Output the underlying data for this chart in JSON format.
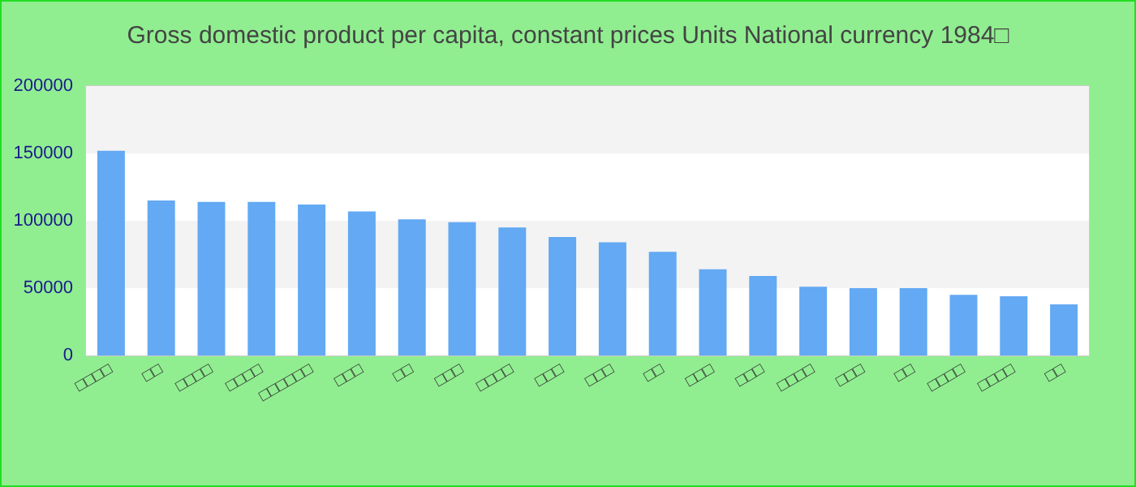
{
  "chart_data": {
    "type": "bar",
    "title": "Gross domestic product per capita, constant prices Units National currency 1984□",
    "categories": [
      "□□□□",
      "□□",
      "□□□□",
      "□□□□",
      "□□□□□□",
      "□□□",
      "□□",
      "□□□",
      "□□□□",
      "□□□",
      "□□□",
      "□□",
      "□□□",
      "□□□",
      "□□□□",
      "□□□",
      "□□",
      "□□□□",
      "□□□□",
      "□□"
    ],
    "values": [
      152000,
      115000,
      114000,
      114000,
      112000,
      107000,
      101000,
      99000,
      95000,
      88000,
      84000,
      77000,
      64000,
      59000,
      51000,
      50000,
      50000,
      45000,
      44000,
      38000
    ],
    "color": "#63a9f3",
    "ylim": [
      0,
      200000
    ],
    "yticks": [
      0,
      50000,
      100000,
      150000,
      200000
    ]
  }
}
